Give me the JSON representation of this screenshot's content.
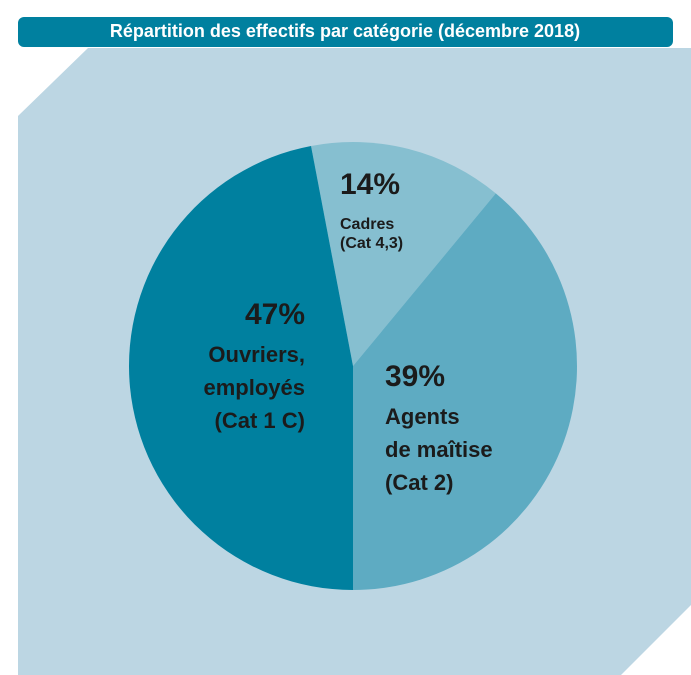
{
  "chart_data": {
    "type": "pie",
    "title": "Répartition des effectifs par catégorie (décembre 2018)",
    "categories": [
      [
        "Cadres",
        "(Cat 4,3)"
      ],
      [
        "Agents",
        "de maîtise",
        "(Cat 2)"
      ],
      [
        "Ouvriers,",
        "employés",
        "(Cat 1 C)"
      ]
    ],
    "values": [
      14,
      39,
      47
    ],
    "value_labels": [
      "14%",
      "39%",
      "47%"
    ],
    "colors": [
      "#86bfd0",
      "#5eabc2",
      "#00809f"
    ]
  }
}
